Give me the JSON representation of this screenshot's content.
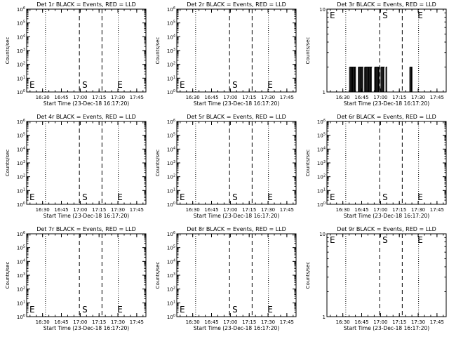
{
  "chart_data": [
    {
      "type": "line",
      "title": "Det 1r BLACK = Events, RED = LLD",
      "ylabel": "Counts/sec",
      "xlabel": "Start Time (23-Dec-18 16:17:20)",
      "x_ticks": [
        "16:30",
        "16:45",
        "17:00",
        "17:15",
        "17:30",
        "17:45"
      ],
      "xlim_minutes": [
        0,
        95
      ],
      "yscale": "log",
      "y_ticks": [
        "10^0",
        "10^1",
        "10^2",
        "10^3",
        "10^4",
        "10^5",
        "10^6"
      ],
      "ylim": [
        1,
        1000000
      ],
      "markers": [
        {
          "label": "E",
          "x": 0
        },
        {
          "label": "S",
          "x": 42
        },
        {
          "label": "E",
          "x": 70
        }
      ],
      "dotted_lines_x": [
        15,
        73
      ],
      "dashed_lines_x": [
        42,
        60
      ],
      "series": []
    },
    {
      "type": "line",
      "title": "Det 2r BLACK = Events, RED = LLD",
      "ylabel": "Counts/sec",
      "xlabel": "Start Time (23-Dec-18 16:17:20)",
      "x_ticks": [
        "16:30",
        "16:45",
        "17:00",
        "17:15",
        "17:30",
        "17:45"
      ],
      "xlim_minutes": [
        0,
        95
      ],
      "yscale": "log",
      "y_ticks": [
        "10^0",
        "10^1",
        "10^2",
        "10^3",
        "10^4",
        "10^5",
        "10^6"
      ],
      "ylim": [
        1,
        1000000
      ],
      "markers": [
        {
          "label": "E",
          "x": 0
        },
        {
          "label": "S",
          "x": 42
        },
        {
          "label": "E",
          "x": 70
        }
      ],
      "dotted_lines_x": [
        15,
        73
      ],
      "dashed_lines_x": [
        42,
        60
      ],
      "series": []
    },
    {
      "type": "line",
      "title": "Det 3r BLACK = Events, RED = LLD",
      "ylabel": "Counts/sec",
      "xlabel": "Start Time (23-Dec-18 16:17:20)",
      "x_ticks": [
        "16:30",
        "16:45",
        "17:00",
        "17:15",
        "17:30",
        "17:45"
      ],
      "xlim_minutes": [
        0,
        95
      ],
      "yscale": "log",
      "y_ticks": [
        "1",
        "10"
      ],
      "ylim": [
        1,
        10
      ],
      "markers": [
        {
          "label": "E",
          "x": 0
        },
        {
          "label": "S",
          "x": 42
        },
        {
          "label": "E",
          "x": 70
        }
      ],
      "dotted_lines_x": [
        15,
        73
      ],
      "dashed_lines_x": [
        42,
        60
      ],
      "series": [
        {
          "color": "#000000",
          "bursts": [
            [
              18,
              23
            ],
            [
              25,
              29
            ],
            [
              30,
              36
            ],
            [
              38,
              42
            ],
            [
              43,
              46
            ],
            [
              47,
              48
            ],
            [
              66,
              68
            ]
          ],
          "value": 2
        }
      ]
    },
    {
      "type": "line",
      "title": "Det 4r BLACK = Events, RED = LLD",
      "ylabel": "Counts/sec",
      "xlabel": "Start Time (23-Dec-18 16:17:20)",
      "x_ticks": [
        "16:30",
        "16:45",
        "17:00",
        "17:15",
        "17:30",
        "17:45"
      ],
      "xlim_minutes": [
        0,
        95
      ],
      "yscale": "log",
      "y_ticks": [
        "10^0",
        "10^1",
        "10^2",
        "10^3",
        "10^4",
        "10^5",
        "10^6"
      ],
      "ylim": [
        1,
        1000000
      ],
      "markers": [
        {
          "label": "E",
          "x": 0
        },
        {
          "label": "S",
          "x": 42
        },
        {
          "label": "E",
          "x": 70
        }
      ],
      "dotted_lines_x": [
        15,
        73
      ],
      "dashed_lines_x": [
        42,
        60
      ],
      "series": []
    },
    {
      "type": "line",
      "title": "Det 5r BLACK = Events, RED = LLD",
      "ylabel": "Counts/sec",
      "xlabel": "Start Time (23-Dec-18 16:17:20)",
      "x_ticks": [
        "16:30",
        "16:45",
        "17:00",
        "17:15",
        "17:30",
        "17:45"
      ],
      "xlim_minutes": [
        0,
        95
      ],
      "yscale": "log",
      "y_ticks": [
        "10^0",
        "10^1",
        "10^2",
        "10^3",
        "10^4",
        "10^5",
        "10^6"
      ],
      "ylim": [
        1,
        1000000
      ],
      "markers": [
        {
          "label": "E",
          "x": 0
        },
        {
          "label": "S",
          "x": 42
        },
        {
          "label": "E",
          "x": 70
        }
      ],
      "dotted_lines_x": [
        15,
        73
      ],
      "dashed_lines_x": [
        42,
        60
      ],
      "series": []
    },
    {
      "type": "line",
      "title": "Det 6r BLACK = Events, RED = LLD",
      "ylabel": "Counts/sec",
      "xlabel": "Start Time (23-Dec-18 16:17:20)",
      "x_ticks": [
        "16:30",
        "16:45",
        "17:00",
        "17:15",
        "17:30",
        "17:45"
      ],
      "xlim_minutes": [
        0,
        95
      ],
      "yscale": "log",
      "y_ticks": [
        "10^0",
        "10^1",
        "10^2",
        "10^3",
        "10^4",
        "10^5",
        "10^6"
      ],
      "ylim": [
        1,
        1000000
      ],
      "markers": [
        {
          "label": "E",
          "x": 0
        },
        {
          "label": "S",
          "x": 42
        },
        {
          "label": "E",
          "x": 70
        }
      ],
      "dotted_lines_x": [
        15,
        73
      ],
      "dashed_lines_x": [
        42,
        60
      ],
      "series": []
    },
    {
      "type": "line",
      "title": "Det 7r BLACK = Events, RED = LLD",
      "ylabel": "Counts/sec",
      "xlabel": "Start Time (23-Dec-18 16:17:20)",
      "x_ticks": [
        "16:30",
        "16:45",
        "17:00",
        "17:15",
        "17:30",
        "17:45"
      ],
      "xlim_minutes": [
        0,
        95
      ],
      "yscale": "log",
      "y_ticks": [
        "10^0",
        "10^1",
        "10^2",
        "10^3",
        "10^4",
        "10^5",
        "10^6"
      ],
      "ylim": [
        1,
        1000000
      ],
      "markers": [
        {
          "label": "E",
          "x": 0
        },
        {
          "label": "S",
          "x": 42
        },
        {
          "label": "E",
          "x": 70
        }
      ],
      "dotted_lines_x": [
        15,
        73
      ],
      "dashed_lines_x": [
        42,
        60
      ],
      "series": []
    },
    {
      "type": "line",
      "title": "Det 8r BLACK = Events, RED = LLD",
      "ylabel": "Counts/sec",
      "xlabel": "Start Time (23-Dec-18 16:17:20)",
      "x_ticks": [
        "16:30",
        "16:45",
        "17:00",
        "17:15",
        "17:30",
        "17:45"
      ],
      "xlim_minutes": [
        0,
        95
      ],
      "yscale": "log",
      "y_ticks": [
        "10^0",
        "10^1",
        "10^2",
        "10^3",
        "10^4",
        "10^5",
        "10^6"
      ],
      "ylim": [
        1,
        1000000
      ],
      "markers": [
        {
          "label": "E",
          "x": 0
        },
        {
          "label": "S",
          "x": 42
        },
        {
          "label": "E",
          "x": 70
        }
      ],
      "dotted_lines_x": [
        15,
        73
      ],
      "dashed_lines_x": [
        42,
        60
      ],
      "series": []
    },
    {
      "type": "line",
      "title": "Det 9r BLACK = Events, RED = LLD",
      "ylabel": "Counts/sec",
      "xlabel": "Start Time (23-Dec-18 16:17:20)",
      "x_ticks": [
        "16:30",
        "16:45",
        "17:00",
        "17:15",
        "17:30",
        "17:45"
      ],
      "xlim_minutes": [
        0,
        95
      ],
      "yscale": "log",
      "y_ticks": [
        "1",
        "10"
      ],
      "ylim": [
        1,
        10
      ],
      "markers": [
        {
          "label": "E",
          "x": 0
        },
        {
          "label": "S",
          "x": 42
        },
        {
          "label": "E",
          "x": 70
        }
      ],
      "dotted_lines_x": [
        15,
        73
      ],
      "dashed_lines_x": [
        42,
        60
      ],
      "series": []
    }
  ]
}
